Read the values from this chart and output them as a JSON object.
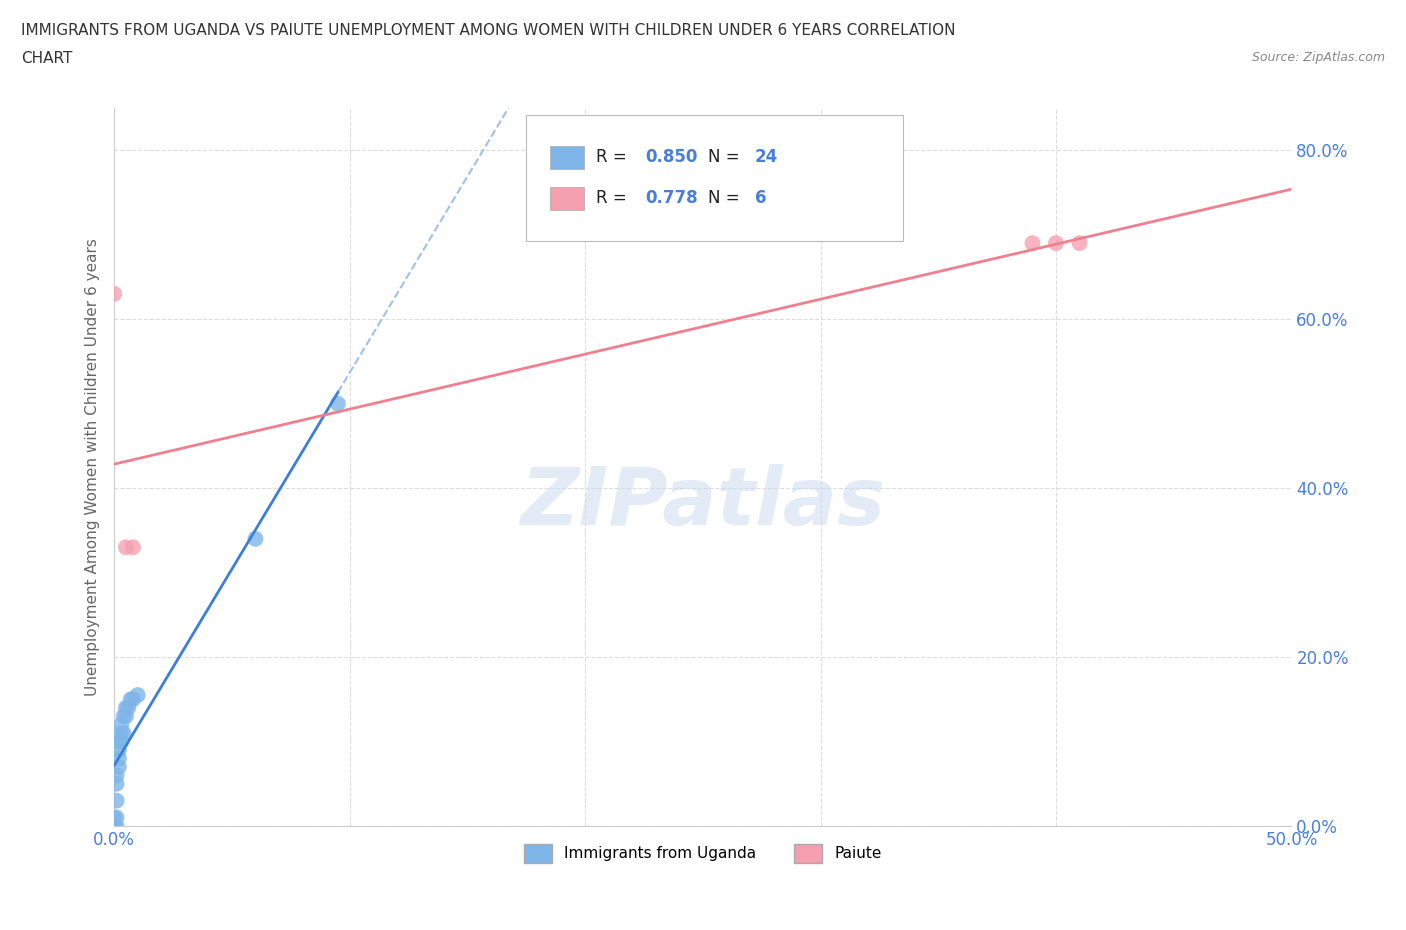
{
  "title_line1": "IMMIGRANTS FROM UGANDA VS PAIUTE UNEMPLOYMENT AMONG WOMEN WITH CHILDREN UNDER 6 YEARS CORRELATION",
  "title_line2": "CHART",
  "source": "Source: ZipAtlas.com",
  "ylabel": "Unemployment Among Women with Children Under 6 years",
  "watermark": "ZIPatlas",
  "xlim": [
    0.0,
    0.5
  ],
  "ylim": [
    0.0,
    0.85
  ],
  "xticks": [
    0.0,
    0.1,
    0.2,
    0.3,
    0.4,
    0.5
  ],
  "xticklabels": [
    "0.0%",
    "",
    "",
    "",
    "",
    "50.0%"
  ],
  "yticks": [
    0.0,
    0.2,
    0.4,
    0.6,
    0.8
  ],
  "yticklabels": [
    "0.0%",
    "20.0%",
    "40.0%",
    "60.0%",
    "80.0%"
  ],
  "uganda_x": [
    0.0,
    0.0,
    0.001,
    0.001,
    0.001,
    0.001,
    0.001,
    0.002,
    0.002,
    0.002,
    0.002,
    0.003,
    0.003,
    0.003,
    0.004,
    0.004,
    0.005,
    0.005,
    0.006,
    0.007,
    0.008,
    0.01,
    0.06,
    0.095
  ],
  "uganda_y": [
    0.0,
    0.01,
    0.0,
    0.01,
    0.03,
    0.05,
    0.06,
    0.07,
    0.08,
    0.09,
    0.1,
    0.1,
    0.11,
    0.12,
    0.11,
    0.13,
    0.13,
    0.14,
    0.14,
    0.15,
    0.15,
    0.155,
    0.34,
    0.5
  ],
  "paiute_x": [
    0.0,
    0.005,
    0.008,
    0.39,
    0.4,
    0.41
  ],
  "paiute_y": [
    0.63,
    0.33,
    0.33,
    0.69,
    0.69,
    0.69
  ],
  "uganda_color": "#7EB5E8",
  "paiute_color": "#F5A0B0",
  "uganda_line_color": "#3A7FD9",
  "paiute_line_color": "#F08090",
  "uganda_dash_color": "#A0C0E8",
  "R_uganda": 0.85,
  "N_uganda": 24,
  "R_paiute": 0.778,
  "N_paiute": 6,
  "legend_label_uganda": "Immigrants from Uganda",
  "legend_label_paiute": "Paiute",
  "text_color_dark": "#2C2C2C",
  "text_color_blue": "#4A7FD9",
  "background_color": "#FFFFFF",
  "grid_color": "#DDDDDD",
  "tick_color": "#4A7FD9"
}
